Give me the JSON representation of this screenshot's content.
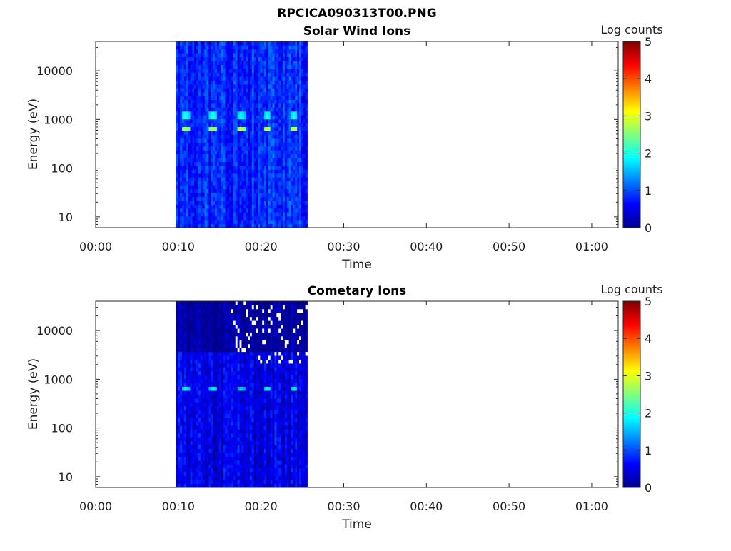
{
  "figure": {
    "title": "RPCICA090313T00.PNG"
  },
  "colors": {
    "colormap": [
      "#00008f",
      "#0000ff",
      "#00ffff",
      "#ffff00",
      "#ff0000",
      "#800000"
    ],
    "background": "#ffffff"
  },
  "chart_data": [
    {
      "type": "heatmap",
      "title": "Solar Wind Ions",
      "xlabel": "Time",
      "ylabel": "Energy (eV)",
      "colorbar_label": "Log counts",
      "xticks": [
        "00:00",
        "00:10",
        "00:20",
        "00:30",
        "00:40",
        "00:50",
        "01:00"
      ],
      "xtick_minutes": [
        0,
        10,
        20,
        30,
        40,
        50,
        60
      ],
      "yticks": [
        "10",
        "100",
        "1000",
        "10000"
      ],
      "ytick_values": [
        10,
        100,
        1000,
        10000
      ],
      "yscale": "log",
      "xlim_minutes": [
        0,
        63.2
      ],
      "ylim_eV": [
        6,
        40000
      ],
      "colorbar_ticks": [
        "0",
        "1",
        "2",
        "3",
        "4",
        "5"
      ],
      "clim": [
        0,
        5
      ],
      "data_time_range_minutes": [
        9.7,
        25.6
      ],
      "peaks": [
        {
          "time_min": 10.9,
          "energy_eV": 1200,
          "log_counts": 2.2
        },
        {
          "time_min": 10.9,
          "energy_eV": 650,
          "log_counts": 2.8
        },
        {
          "time_min": 14.2,
          "energy_eV": 1200,
          "log_counts": 2.2
        },
        {
          "time_min": 14.2,
          "energy_eV": 650,
          "log_counts": 2.8
        },
        {
          "time_min": 17.6,
          "energy_eV": 1200,
          "log_counts": 2.1
        },
        {
          "time_min": 17.6,
          "energy_eV": 650,
          "log_counts": 2.9
        },
        {
          "time_min": 20.8,
          "energy_eV": 1200,
          "log_counts": 2.1
        },
        {
          "time_min": 20.8,
          "energy_eV": 650,
          "log_counts": 2.9
        },
        {
          "time_min": 24.0,
          "energy_eV": 1200,
          "log_counts": 2.1
        },
        {
          "time_min": 24.0,
          "energy_eV": 650,
          "log_counts": 2.9
        }
      ],
      "background_log_counts": 0.8
    },
    {
      "type": "heatmap",
      "title": "Cometary Ions",
      "xlabel": "Time",
      "ylabel": "Energy (eV)",
      "colorbar_label": "Log counts",
      "xticks": [
        "00:00",
        "00:10",
        "00:20",
        "00:30",
        "00:40",
        "00:50",
        "01:00"
      ],
      "xtick_minutes": [
        0,
        10,
        20,
        30,
        40,
        50,
        60
      ],
      "yticks": [
        "10",
        "100",
        "1000",
        "10000"
      ],
      "ytick_values": [
        10,
        100,
        1000,
        10000
      ],
      "yscale": "log",
      "xlim_minutes": [
        0,
        63.2
      ],
      "ylim_eV": [
        6,
        40000
      ],
      "colorbar_ticks": [
        "0",
        "1",
        "2",
        "3",
        "4",
        "5"
      ],
      "clim": [
        0,
        5
      ],
      "data_time_range_minutes": [
        9.7,
        25.6
      ],
      "peaks": [
        {
          "time_min": 10.9,
          "energy_eV": 650,
          "log_counts": 1.9
        },
        {
          "time_min": 14.2,
          "energy_eV": 650,
          "log_counts": 1.9
        },
        {
          "time_min": 17.6,
          "energy_eV": 650,
          "log_counts": 1.7
        },
        {
          "time_min": 20.8,
          "energy_eV": 650,
          "log_counts": 1.9
        },
        {
          "time_min": 24.0,
          "energy_eV": 650,
          "log_counts": 1.8
        }
      ],
      "background_log_counts": 0.5,
      "empty_bins_shown_white": true
    }
  ]
}
